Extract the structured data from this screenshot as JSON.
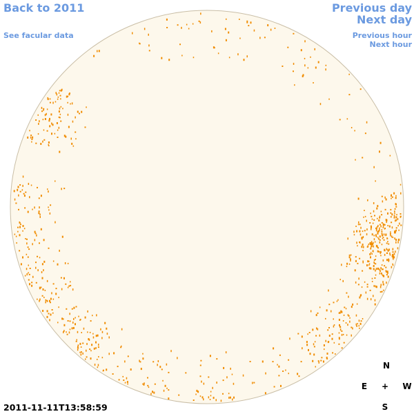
{
  "nav": {
    "back": "Back to 2011",
    "facular": "See facular data",
    "previous_day": "Previous day",
    "next_day": "Next day",
    "previous_hour": "Previous hour",
    "next_hour": "Next hour"
  },
  "timestamp": "2011-11-11T13:58:59",
  "compass": {
    "north": "N",
    "east": "E",
    "center": "+",
    "west": "W",
    "south": "S"
  }
}
